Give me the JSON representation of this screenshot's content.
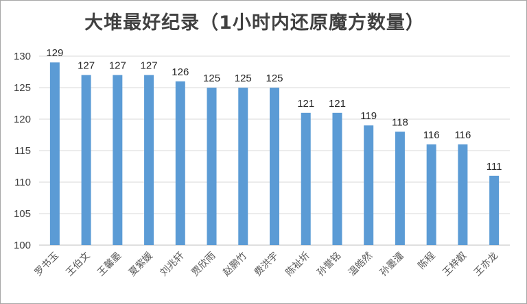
{
  "chart_data": {
    "type": "bar",
    "title": "大堆最好纪录（1小时内还原魔方数量）",
    "categories": [
      "罗书玉",
      "王伯文",
      "王馨墨",
      "夏紫媛",
      "刘兆轩",
      "贾欣雨",
      "赵鹏竹",
      "费洪宇",
      "陈祉圻",
      "孙誉铭",
      "温皓然",
      "孙墨潼",
      "陈程",
      "王梓叡",
      "王亦龙"
    ],
    "values": [
      129,
      127,
      127,
      127,
      126,
      125,
      125,
      125,
      121,
      121,
      119,
      118,
      116,
      116,
      111
    ],
    "ylim": [
      100,
      130
    ],
    "yticks": [
      100,
      105,
      110,
      115,
      120,
      125,
      130
    ],
    "xlabel": "",
    "ylabel": "",
    "grid": true,
    "legend": "none",
    "bar_color": "#5b9bd5",
    "grid_color": "#d9d9d9"
  }
}
